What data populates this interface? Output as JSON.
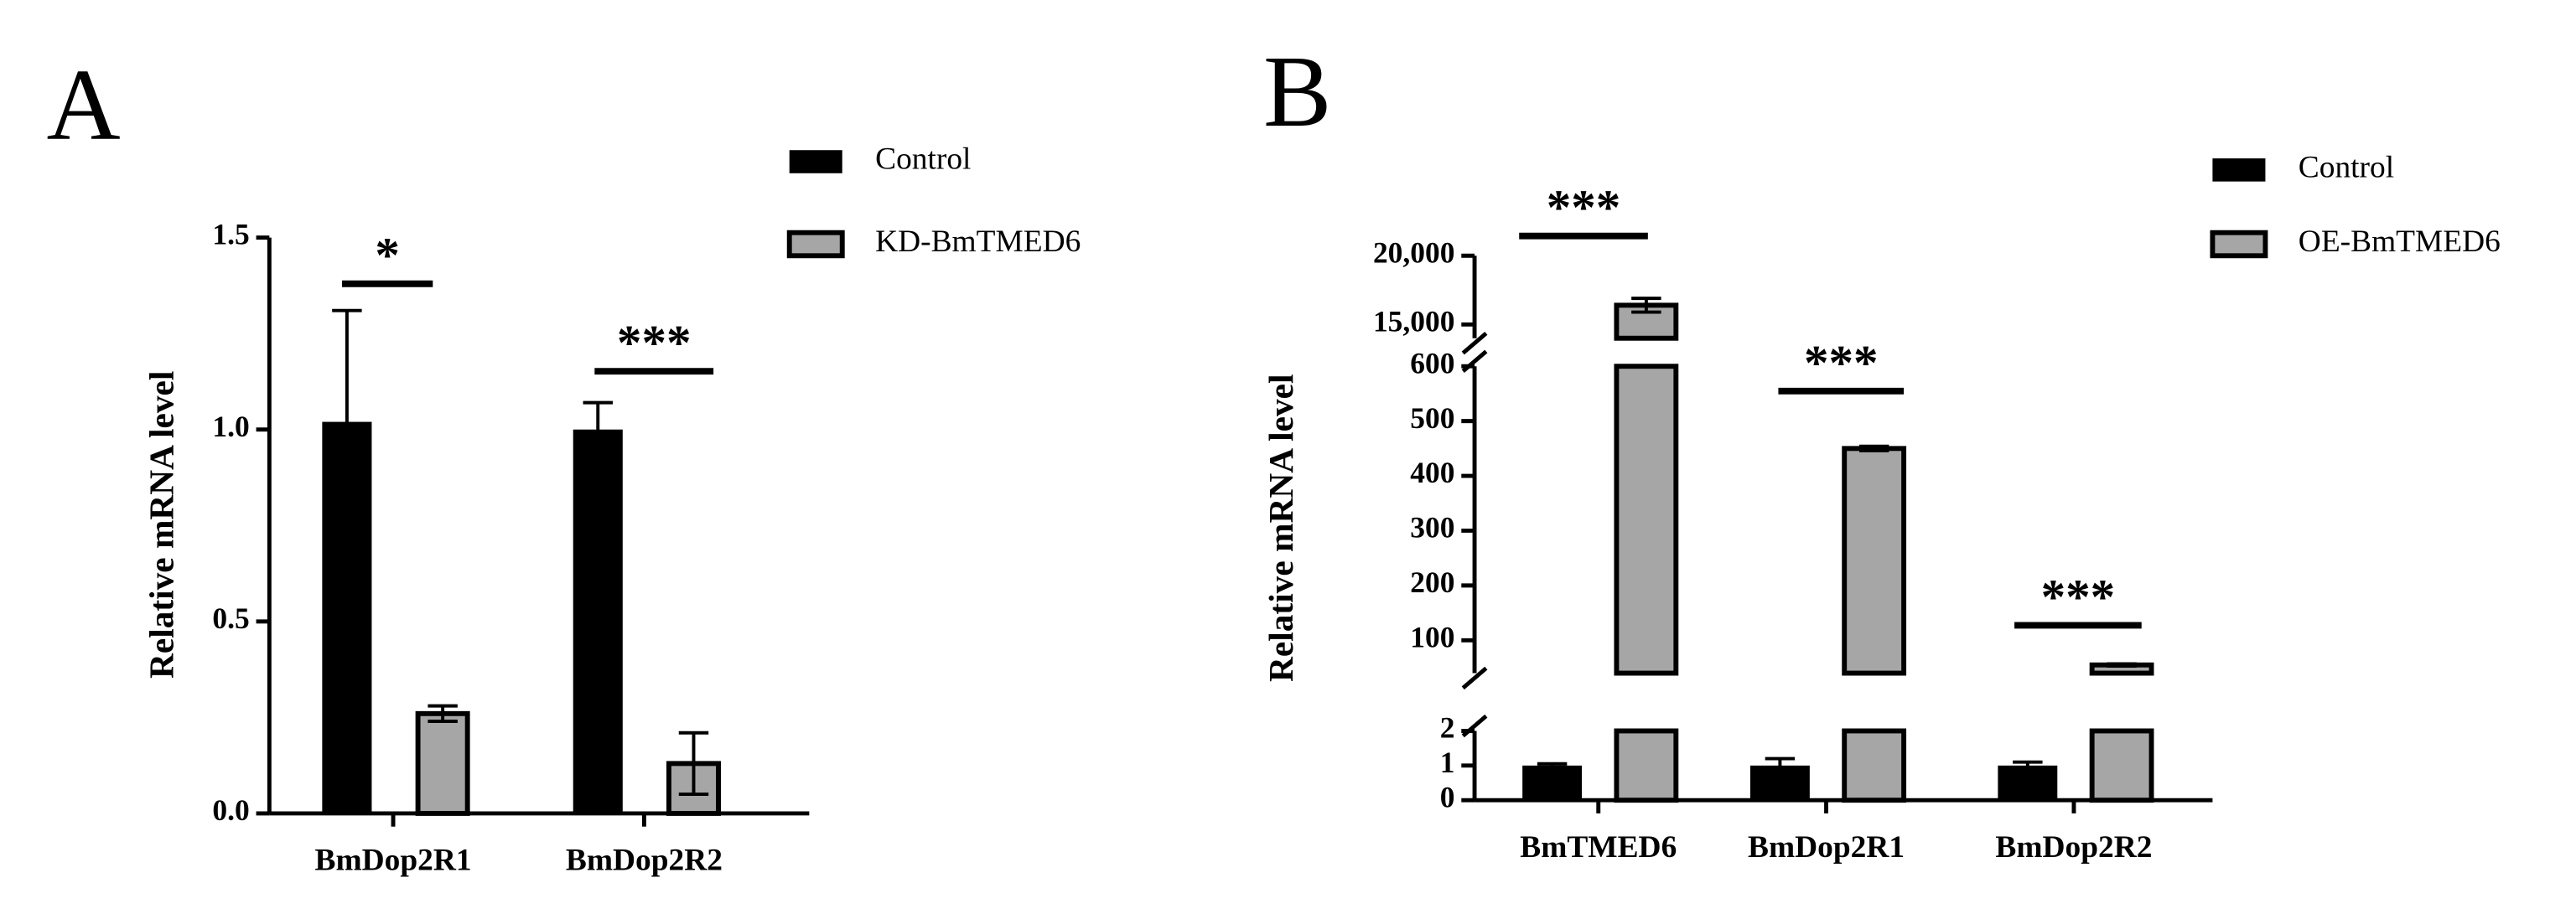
{
  "chart_data": [
    {
      "type": "bar",
      "panel": "A",
      "ylabel": "Relative mRNA level",
      "categories": [
        "BmDop2R1",
        "BmDop2R2"
      ],
      "series": [
        {
          "name": "Control",
          "color": "#000000",
          "values": [
            1.02,
            1.0
          ],
          "errors": [
            0.29,
            0.07
          ]
        },
        {
          "name": "KD-BmTMED6",
          "color": "#a6a6a6",
          "values": [
            0.26,
            0.13
          ],
          "errors": [
            0.02,
            0.08
          ]
        }
      ],
      "ylim": [
        0,
        1.5
      ],
      "yticks": [
        {
          "value": 0,
          "label": "0.0"
        },
        0.5,
        {
          "value": 1,
          "label": "1.0"
        },
        1.5
      ],
      "annotations": [
        "*",
        "***"
      ]
    },
    {
      "type": "bar",
      "panel": "B",
      "ylabel": "Relative mRNA level",
      "categories": [
        "BmTMED6",
        "BmDop2R1",
        "BmDop2R2"
      ],
      "series": [
        {
          "name": "Control",
          "color": "#000000",
          "values": [
            1,
            1,
            1
          ],
          "errors": [
            0.05,
            0.2,
            0.1
          ]
        },
        {
          "name": "OE-BmTMED6",
          "color": "#a6a6a6",
          "values": [
            16400,
            450,
            55
          ],
          "errors": [
            500,
            4,
            2
          ]
        }
      ],
      "y_segments": [
        {
          "ylim": [
            0,
            2
          ],
          "yticks": [
            0,
            1,
            2
          ]
        },
        {
          "ylim": [
            40,
            600
          ],
          "yticks": [
            100,
            200,
            300,
            400,
            500,
            600
          ]
        },
        {
          "ylim": [
            14000,
            20000
          ],
          "yticks": [
            {
              "value": 15000,
              "label": "15,000"
            },
            {
              "value": 20000,
              "label": "20,000"
            }
          ]
        }
      ],
      "annotations": [
        "***",
        "***",
        "***"
      ]
    }
  ]
}
